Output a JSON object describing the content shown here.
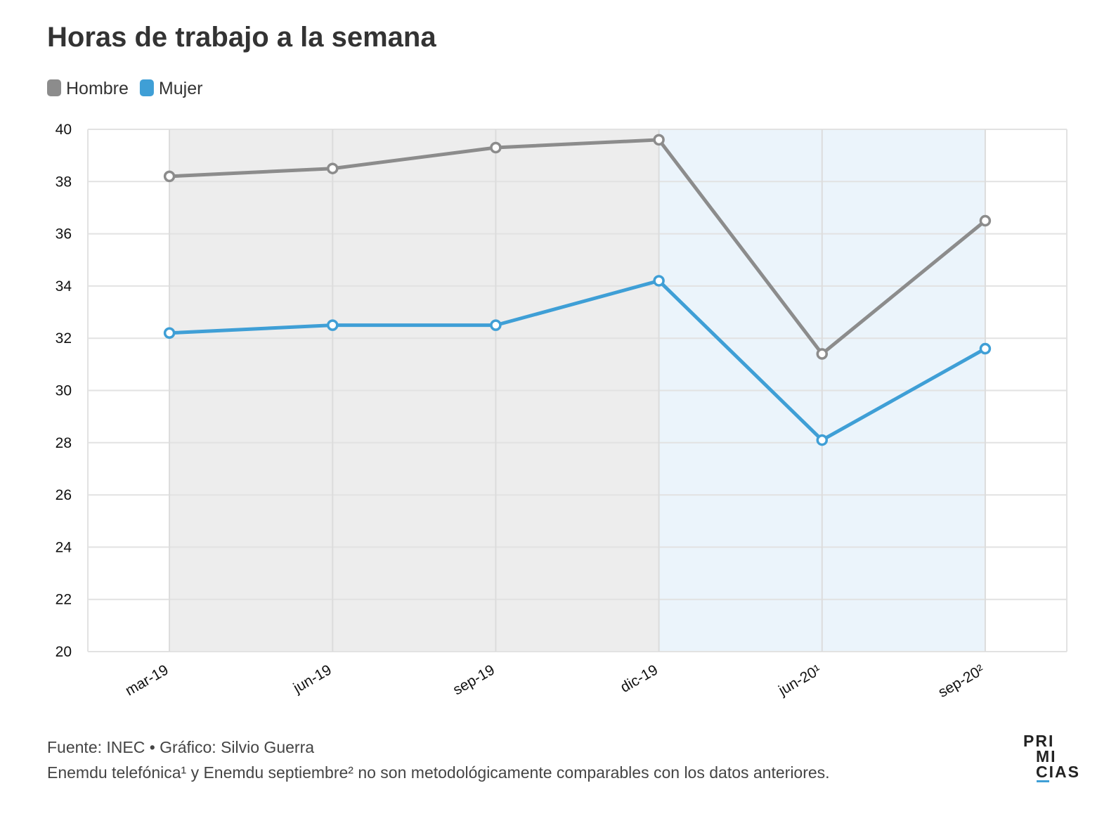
{
  "chart_data": {
    "type": "line",
    "title": "Horas de trabajo a la semana",
    "categories": [
      "mar-19",
      "jun-19",
      "sep-19",
      "dic-19",
      "jun-20¹",
      "sep-20²"
    ],
    "series": [
      {
        "name": "Hombre",
        "color": "#8c8c8c",
        "values": [
          38.2,
          38.5,
          39.3,
          39.6,
          31.4,
          36.5
        ]
      },
      {
        "name": "Mujer",
        "color": "#3f9fd6",
        "values": [
          32.2,
          32.5,
          32.5,
          34.2,
          28.1,
          31.6
        ]
      }
    ],
    "ylim": [
      20,
      40
    ],
    "yticks": [
      20,
      22,
      24,
      26,
      28,
      30,
      32,
      34,
      36,
      38,
      40
    ],
    "grid": true,
    "source": "Fuente: INEC • Gráfico: Silvio Guerra",
    "note": "Enemdu telefónica¹ y Enemdu septiembre² no son metodológicamente comparables con los datos anteriores.",
    "logo": [
      "PRI",
      "MI",
      "CIAS"
    ]
  }
}
